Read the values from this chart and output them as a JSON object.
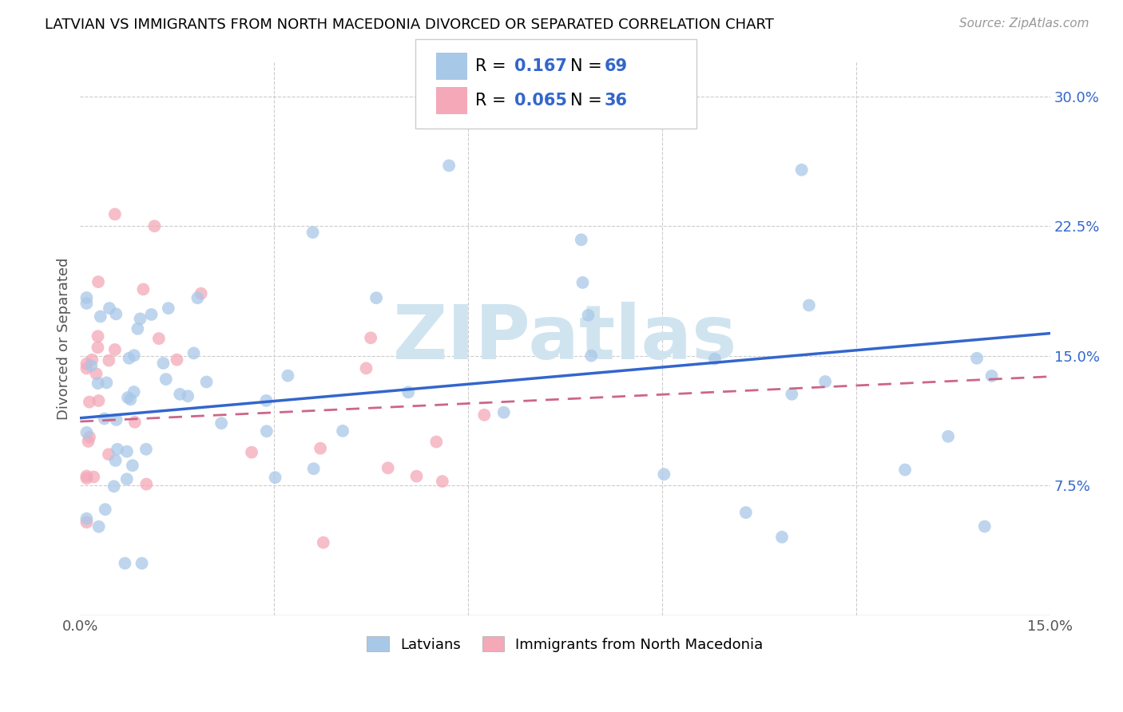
{
  "title": "LATVIAN VS IMMIGRANTS FROM NORTH MACEDONIA DIVORCED OR SEPARATED CORRELATION CHART",
  "source": "Source: ZipAtlas.com",
  "ylabel": "Divorced or Separated",
  "xlim": [
    0.0,
    0.15
  ],
  "ylim": [
    0.0,
    0.32
  ],
  "xticks": [
    0.0,
    0.03,
    0.06,
    0.09,
    0.12,
    0.15
  ],
  "yticks": [
    0.075,
    0.15,
    0.225,
    0.3
  ],
  "yticklabels": [
    "7.5%",
    "15.0%",
    "22.5%",
    "30.0%"
  ],
  "latvian_R": 0.167,
  "latvian_N": 69,
  "macedonia_R": 0.065,
  "macedonia_N": 36,
  "latvian_color": "#a8c8e8",
  "macedonian_color": "#f4a8b8",
  "latvian_line_color": "#3366cc",
  "macedonian_line_color": "#cc6688",
  "lat_line_y0": 0.114,
  "lat_line_y1": 0.163,
  "mac_line_y0": 0.112,
  "mac_line_y1": 0.138,
  "watermark_text": "ZIPatlas",
  "watermark_color": "#d0e4f0",
  "grid_color": "#cccccc",
  "background_color": "#ffffff",
  "title_fontsize": 13,
  "source_fontsize": 11,
  "tick_fontsize": 13,
  "ylabel_fontsize": 13,
  "legend_fontsize": 15
}
